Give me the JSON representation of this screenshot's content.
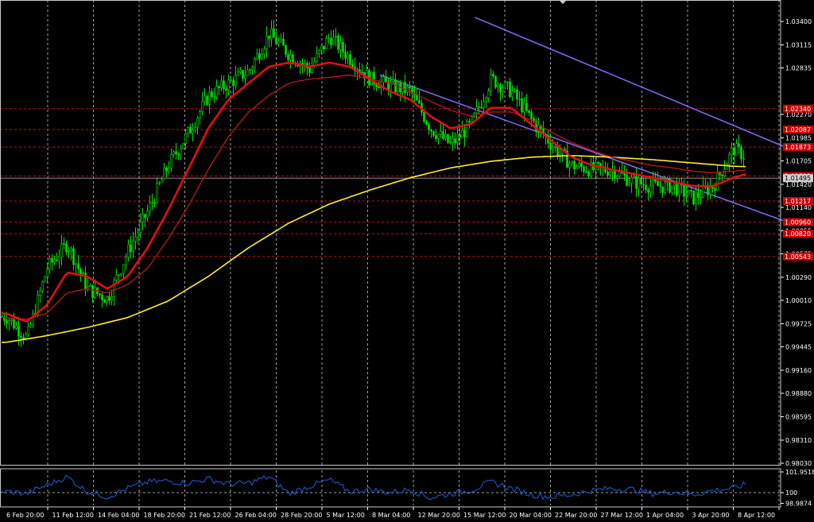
{
  "chart_data": [
    {
      "type": "candlestick",
      "symbol_hidden": true,
      "x_ticks": [
        "6 Feb 20:00",
        "11 Feb 12:00",
        "14 Feb 04:00",
        "18 Feb 20:00",
        "21 Feb 12:00",
        "26 Feb 04:00",
        "28 Feb 20:00",
        "5 Mar 12:00",
        "8 Mar 04:00",
        "12 Mar 20:00",
        "15 Mar 12:00",
        "20 Mar 04:00",
        "22 Mar 20:00",
        "27 Mar 12:00",
        "1 Apr 04:00",
        "3 Apr 20:00",
        "8 Apr 12:00"
      ],
      "y_ticks": [
        "1.03400",
        "1.03115",
        "1.02835",
        "1.02270",
        "1.01985",
        "1.01705",
        "1.01420",
        "1.01140",
        "1.00855",
        "1.00575",
        "1.00290",
        "1.00010",
        "0.99725",
        "0.99445",
        "0.99160",
        "0.98880",
        "0.98595",
        "0.98310",
        "0.98030"
      ],
      "ylim": [
        0.9803,
        1.034
      ],
      "grid": true,
      "current_price": "1.01495",
      "price_levels": [
        {
          "label": "1.02340",
          "value": 1.0234
        },
        {
          "label": "1.02087",
          "value": 1.02087
        },
        {
          "label": "1.01873",
          "value": 1.01873
        },
        {
          "label": "1.01521",
          "value": 1.01521
        },
        {
          "label": "1.01217",
          "value": 1.01217
        },
        {
          "label": "1.00960",
          "value": 1.0096
        },
        {
          "label": "1.00820",
          "value": 1.0082
        },
        {
          "label": "1.00543",
          "value": 1.00543
        }
      ],
      "channel_lines": [
        {
          "x": [
            18.5,
            38.8
          ],
          "y": [
            1.0275,
            1.0095
          ]
        },
        {
          "x": [
            23.2,
            38.8
          ],
          "y": [
            1.0345,
            1.0185
          ]
        }
      ],
      "anchor_series": {
        "price": {
          "x": [
            0,
            1,
            2,
            3,
            4,
            5,
            6,
            7,
            8,
            9,
            10,
            11,
            12,
            13,
            14,
            15,
            16,
            17,
            18,
            19,
            20,
            21,
            22,
            23,
            24,
            25,
            26,
            27,
            28,
            29,
            30,
            31,
            32,
            33,
            34,
            35,
            36,
            37,
            37.8,
            38.5
          ],
          "y": [
            0.9981,
            0.9955,
            1.004,
            1.007,
            1.0015,
            1.0003,
            1.006,
            1.011,
            1.0165,
            1.0205,
            1.025,
            1.0265,
            1.028,
            1.0325,
            1.03,
            1.0282,
            1.0322,
            1.0295,
            1.027,
            1.0262,
            1.0255,
            1.021,
            1.019,
            1.0215,
            1.027,
            1.0255,
            1.022,
            1.019,
            1.0165,
            1.016,
            1.016,
            1.0145,
            1.014,
            1.014,
            1.0125,
            1.014,
            1.0185,
            1.017,
            1.016,
            1.0152
          ]
        },
        "ma_fast": {
          "x": [
            0,
            1,
            2,
            3,
            4,
            5,
            6,
            7,
            8,
            9,
            10,
            11,
            12,
            13,
            14,
            15,
            16,
            17,
            18,
            19,
            20,
            21,
            22,
            23,
            24,
            25,
            26,
            27,
            28,
            29,
            30,
            31,
            32,
            33,
            34,
            35,
            36,
            37,
            37.8,
            38.5
          ],
          "y": [
            0.9985,
            0.9975,
            0.9995,
            1.0035,
            1.003,
            1.0015,
            1.003,
            1.0065,
            1.011,
            1.016,
            1.021,
            1.0245,
            1.0265,
            1.0285,
            1.029,
            1.0285,
            1.029,
            1.0285,
            1.027,
            1.0255,
            1.0245,
            1.0225,
            1.021,
            1.0215,
            1.0235,
            1.0235,
            1.0215,
            1.0195,
            1.0175,
            1.0165,
            1.016,
            1.0155,
            1.015,
            1.0145,
            1.014,
            1.014,
            1.015,
            1.0157,
            1.0157,
            1.0155
          ]
        },
        "ma_mid": {
          "x": [
            0,
            1,
            2,
            3,
            4,
            5,
            6,
            7,
            8,
            9,
            10,
            11,
            12,
            13,
            14,
            15,
            16,
            17,
            18,
            19,
            20,
            21,
            22,
            23,
            24,
            25,
            26,
            27,
            28,
            29,
            30,
            31,
            32,
            33,
            34,
            35,
            36,
            37,
            37.8,
            38.5
          ],
          "y": [
            0.998,
            0.9978,
            0.9985,
            1.001,
            1.0015,
            1.001,
            1.002,
            1.004,
            1.0075,
            1.0115,
            1.016,
            1.02,
            1.023,
            1.025,
            1.0265,
            1.027,
            1.0272,
            1.0275,
            1.027,
            1.0265,
            1.0255,
            1.0243,
            1.0232,
            1.0225,
            1.023,
            1.023,
            1.022,
            1.0205,
            1.0193,
            1.0183,
            1.0175,
            1.017,
            1.0165,
            1.0162,
            1.0158,
            1.0156,
            1.0158,
            1.016,
            1.016,
            1.0159
          ]
        },
        "ma_slow": {
          "x": [
            0,
            2,
            4,
            6,
            8,
            10,
            12,
            14,
            16,
            18,
            20,
            22,
            24,
            26,
            28,
            30,
            32,
            34,
            36,
            38.5
          ],
          "y": [
            0.995,
            0.9958,
            0.9968,
            0.998,
            1.0,
            1.003,
            1.0065,
            1.0095,
            1.0118,
            1.0135,
            1.015,
            1.0162,
            1.017,
            1.0175,
            1.0177,
            1.0175,
            1.0172,
            1.0168,
            1.0164,
            1.0162
          ]
        }
      }
    },
    {
      "type": "line",
      "name": "oscillator",
      "y_ticks": [
        "101.9518",
        "100",
        "98.9874"
      ],
      "ylim": [
        98.8,
        102.1
      ],
      "grid": true,
      "x": [
        0,
        1,
        2,
        3,
        4,
        5,
        6,
        7,
        8,
        9,
        10,
        11,
        12,
        13,
        14,
        15,
        16,
        17,
        18,
        19,
        20,
        21,
        22,
        23,
        24,
        25,
        26,
        27,
        28,
        29,
        30,
        31,
        32,
        33,
        34,
        35,
        36,
        37,
        38,
        38.5
      ],
      "y": [
        100.1,
        99.9,
        100.7,
        101.5,
        100.1,
        99.6,
        100.4,
        101.0,
        101.1,
        100.9,
        101.3,
        100.8,
        100.9,
        101.5,
        99.9,
        100.6,
        101.2,
        100.1,
        100.3,
        100.0,
        100.3,
        99.5,
        99.9,
        100.2,
        101.0,
        100.4,
        99.8,
        99.6,
        99.8,
        100.2,
        100.4,
        100.3,
        99.9,
        100.1,
        99.8,
        100.2,
        100.4,
        101.0,
        100.5,
        100.7
      ]
    }
  ]
}
